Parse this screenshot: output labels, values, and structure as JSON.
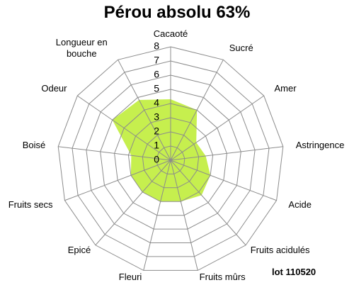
{
  "chart_data": {
    "type": "radar",
    "title": "Pérou absolu 63%",
    "categories": [
      "Cacaoté",
      "Sucré",
      "Amer",
      "Astringence",
      "Acide",
      "Fruits acidulés",
      "Fruits mûrs",
      "Fleuri",
      "Epicé",
      "Fruits secs",
      "Boisé",
      "Odeur",
      "Longueur en bouche"
    ],
    "values": [
      4.3,
      4,
      2.2,
      2.5,
      3,
      3.3,
      3,
      3,
      3,
      3,
      2.8,
      5,
      4.8
    ],
    "color": "#c6ef4e",
    "rlim": [
      0,
      8
    ],
    "rticks": [
      0,
      1,
      2,
      3,
      4,
      5,
      6,
      7,
      8
    ],
    "grid": true,
    "annotation": "lot 110520"
  }
}
